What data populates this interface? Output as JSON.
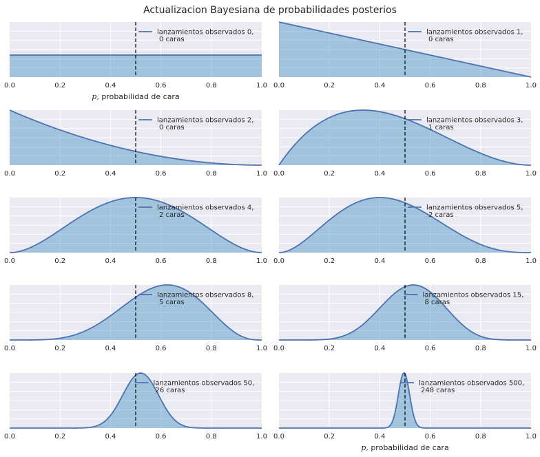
{
  "title": "Actualizacion Bayesiana de probabilidades posterios",
  "colors": {
    "background": "#eaeaf2",
    "grid": "#ffffff",
    "line": "#4c72b0",
    "fill": "#348abd",
    "vline": "#000000"
  },
  "chart_data": [
    {
      "type": "area",
      "trials": 0,
      "heads": 0,
      "legend": [
        "lanzamientos observados 0,",
        "0 caras"
      ],
      "xlabel": "p, probabilidad de cara",
      "xlim": [
        0,
        1
      ],
      "xticks": [
        "0.0",
        "0.2",
        "0.4",
        "0.6",
        "0.8",
        "1.0"
      ],
      "vline": 0.5,
      "grid": true,
      "legend_position": "upper-right"
    },
    {
      "type": "area",
      "trials": 1,
      "heads": 0,
      "legend": [
        "lanzamientos observados 1,",
        "0 caras"
      ],
      "xlabel": "",
      "xlim": [
        0,
        1
      ],
      "xticks": [
        "0.0",
        "0.2",
        "0.4",
        "0.6",
        "0.8",
        "1.0"
      ],
      "vline": 0.5,
      "grid": true,
      "legend_position": "upper-right"
    },
    {
      "type": "area",
      "trials": 2,
      "heads": 0,
      "legend": [
        "lanzamientos observados 2,",
        "0 caras"
      ],
      "xlabel": "",
      "xlim": [
        0,
        1
      ],
      "xticks": [
        "0.0",
        "0.2",
        "0.4",
        "0.6",
        "0.8",
        "1.0"
      ],
      "vline": 0.5,
      "grid": true,
      "legend_position": "upper-right"
    },
    {
      "type": "area",
      "trials": 3,
      "heads": 1,
      "legend": [
        "lanzamientos observados 3,",
        "1 caras"
      ],
      "xlabel": "",
      "xlim": [
        0,
        1
      ],
      "xticks": [
        "0.0",
        "0.2",
        "0.4",
        "0.6",
        "0.8",
        "1.0"
      ],
      "vline": 0.5,
      "grid": true,
      "legend_position": "upper-right"
    },
    {
      "type": "area",
      "trials": 4,
      "heads": 2,
      "legend": [
        "lanzamientos observados 4,",
        "2 caras"
      ],
      "xlabel": "",
      "xlim": [
        0,
        1
      ],
      "xticks": [
        "0.0",
        "0.2",
        "0.4",
        "0.6",
        "0.8",
        "1.0"
      ],
      "vline": 0.5,
      "grid": true,
      "legend_position": "upper-right"
    },
    {
      "type": "area",
      "trials": 5,
      "heads": 2,
      "legend": [
        "lanzamientos observados 5,",
        "2 caras"
      ],
      "xlabel": "",
      "xlim": [
        0,
        1
      ],
      "xticks": [
        "0.0",
        "0.2",
        "0.4",
        "0.6",
        "0.8",
        "1.0"
      ],
      "vline": 0.5,
      "grid": true,
      "legend_position": "upper-right"
    },
    {
      "type": "area",
      "trials": 8,
      "heads": 5,
      "legend": [
        "lanzamientos observados 8,",
        "5 caras"
      ],
      "xlabel": "",
      "xlim": [
        0,
        1
      ],
      "xticks": [
        "0.0",
        "0.2",
        "0.4",
        "0.6",
        "0.8",
        "1.0"
      ],
      "vline": 0.5,
      "grid": true,
      "legend_position": "upper-right"
    },
    {
      "type": "area",
      "trials": 15,
      "heads": 8,
      "legend": [
        "lanzamientos observados 15,",
        "8 caras"
      ],
      "xlabel": "",
      "xlim": [
        0,
        1
      ],
      "xticks": [
        "0.0",
        "0.2",
        "0.4",
        "0.6",
        "0.8",
        "1.0"
      ],
      "vline": 0.5,
      "grid": true,
      "legend_position": "upper-right"
    },
    {
      "type": "area",
      "trials": 50,
      "heads": 26,
      "legend": [
        "lanzamientos observados 50,",
        "26 caras"
      ],
      "xlabel": "",
      "xlim": [
        0,
        1
      ],
      "xticks": [
        "0.0",
        "0.2",
        "0.4",
        "0.6",
        "0.8",
        "1.0"
      ],
      "vline": 0.5,
      "grid": true,
      "legend_position": "upper-right"
    },
    {
      "type": "area",
      "trials": 500,
      "heads": 248,
      "legend": [
        "lanzamientos observados 500,",
        "248 caras"
      ],
      "xlabel": "p, probabilidad de cara",
      "xlim": [
        0,
        1
      ],
      "xticks": [
        "0.0",
        "0.2",
        "0.4",
        "0.6",
        "0.8",
        "1.0"
      ],
      "vline": 0.5,
      "grid": true,
      "legend_position": "upper-right"
    }
  ]
}
